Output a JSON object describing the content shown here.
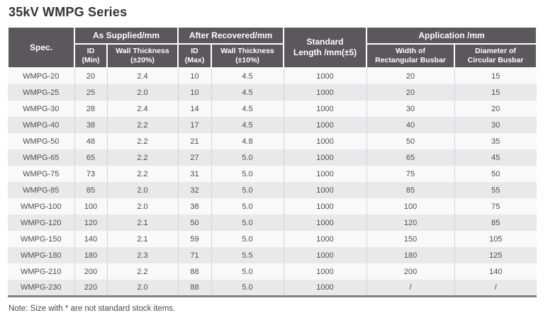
{
  "title": "35kV WMPG Series",
  "colors": {
    "header_bg": "#5a585a",
    "header_text": "#ffffff",
    "row_light": "#f9f9fa",
    "row_gray": "#e9e8ea",
    "cell_line": "#d5d4d6",
    "bottom_rule": "#828282",
    "body_text": "#4e4d4f",
    "title_text": "#32323a"
  },
  "table": {
    "header": {
      "spec": "Spec.",
      "as_supplied": "As Supplied/mm",
      "after_recovered": "After Recovered/mm",
      "standard_length": "Standard\nLength /mm(±5)",
      "application": "Application /mm",
      "id_min": "ID\n(Min)",
      "wall_thickness_20": "Wall Thickness\n(±20%)",
      "id_max": "ID\n(Max)",
      "wall_thickness_10": "Wall Thickness\n(±10%)",
      "width_rect_busbar": "Width of\nRectangular Busbar",
      "diameter_circ_busbar": "Diameter of\nCircular Busbar"
    },
    "rows": [
      [
        "WMPG-20",
        "20",
        "2.4",
        "10",
        "4.5",
        "1000",
        "20",
        "15"
      ],
      [
        "WMPG-25",
        "25",
        "2.0",
        "10",
        "4.5",
        "1000",
        "20",
        "15"
      ],
      [
        "WMPG-30",
        "28",
        "2.4",
        "14",
        "4.5",
        "1000",
        "30",
        "20"
      ],
      [
        "WMPG-40",
        "38",
        "2.2",
        "17",
        "4.5",
        "1000",
        "40",
        "30"
      ],
      [
        "WMPG-50",
        "48",
        "2.2",
        "21",
        "4.8",
        "1000",
        "50",
        "35"
      ],
      [
        "WMPG-65",
        "65",
        "2.2",
        "27",
        "5.0",
        "1000",
        "65",
        "45"
      ],
      [
        "WMPG-75",
        "73",
        "2.2",
        "31",
        "5.0",
        "1000",
        "75",
        "50"
      ],
      [
        "WMPG-85",
        "85",
        "2.0",
        "32",
        "5.0",
        "1000",
        "85",
        "55"
      ],
      [
        "WMPG-100",
        "100",
        "2.0",
        "38",
        "5.0",
        "1000",
        "100",
        "75"
      ],
      [
        "WMPG-120",
        "120",
        "2.1",
        "50",
        "5.0",
        "1000",
        "120",
        "85"
      ],
      [
        "WMPG-150",
        "140",
        "2.1",
        "59",
        "5.0",
        "1000",
        "150",
        "105"
      ],
      [
        "WMPG-180",
        "180",
        "2.3",
        "71",
        "5.5",
        "1000",
        "180",
        "125"
      ],
      [
        "WMPG-210",
        "200",
        "2.2",
        "88",
        "5.0",
        "1000",
        "200",
        "140"
      ],
      [
        "WMPG-230",
        "220",
        "2.0",
        "88",
        "5.0",
        "1000",
        "/",
        "/"
      ]
    ]
  },
  "note": "Note: Size with * are not standard stock items."
}
